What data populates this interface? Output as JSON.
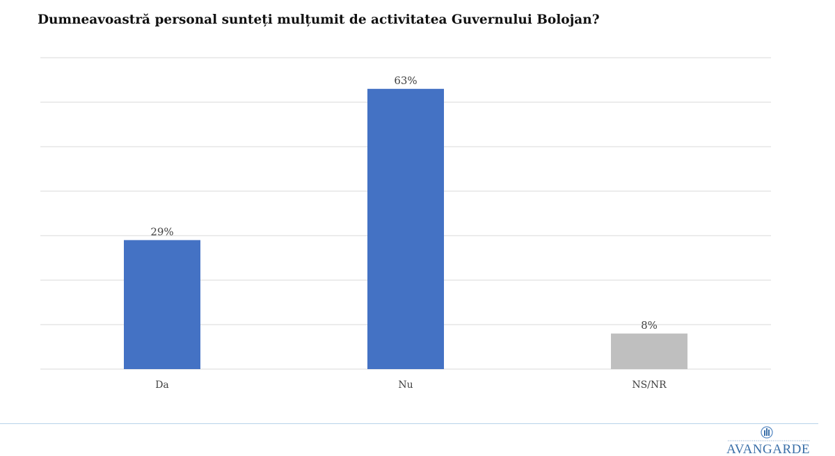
{
  "chart_data": {
    "type": "bar",
    "title": "Dumneavoastră personal sunteți mulțumit de activitatea Guvernului Bolojan?",
    "categories": [
      "Da",
      "Nu",
      "NS/NR"
    ],
    "values": [
      29,
      63,
      8
    ],
    "value_labels": [
      "29%",
      "63%",
      "8%"
    ],
    "bar_colors": [
      "#4472C4",
      "#4472C4",
      "#BFBFBF"
    ],
    "ylim": [
      0,
      70
    ],
    "gridlines": [
      0,
      10,
      20,
      30,
      40,
      50,
      60,
      70
    ],
    "grid": true,
    "gridline_color": "#D9D9D9"
  },
  "footer": {
    "logo_text": "AVANGARDE",
    "logo_color": "#3A6FA8"
  }
}
